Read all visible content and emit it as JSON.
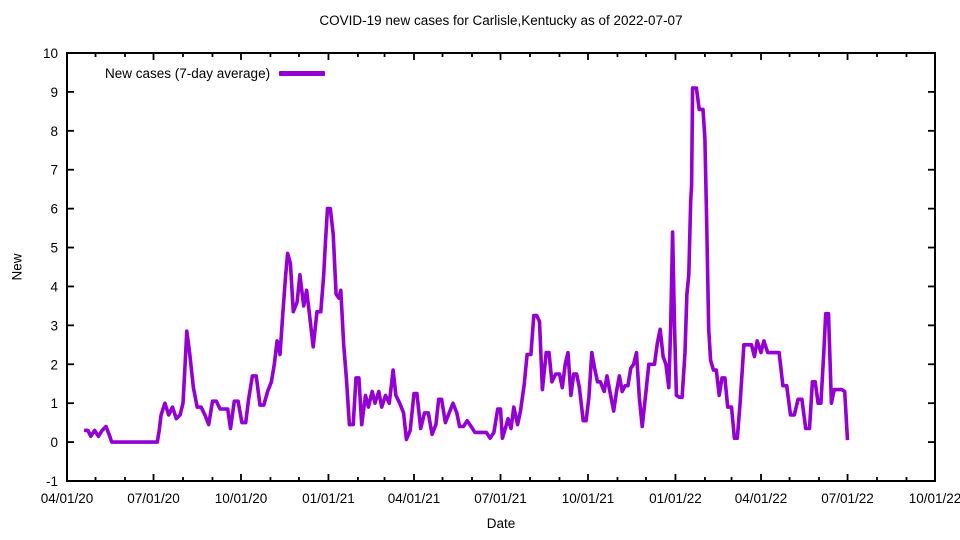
{
  "chart_data": {
    "type": "line",
    "title": "COVID-19 new cases for Carlisle,Kentucky as of 2022-07-07",
    "xlabel": "Date",
    "ylabel": "New",
    "grid": false,
    "legend_position": "top-left-inside",
    "legend": [
      {
        "label": "New cases (7-day average)",
        "color": "#9400D3"
      }
    ],
    "x_range": [
      "2020-04-01",
      "2022-10-01"
    ],
    "y_range": [
      -1,
      10
    ],
    "x_minor_tick_interval": "1 month",
    "x_major_ticks": [
      {
        "date": "2020-04-01",
        "label": "04/01/20"
      },
      {
        "date": "2020-07-01",
        "label": "07/01/20"
      },
      {
        "date": "2020-10-01",
        "label": "10/01/20"
      },
      {
        "date": "2021-01-01",
        "label": "01/01/21"
      },
      {
        "date": "2021-04-01",
        "label": "04/01/21"
      },
      {
        "date": "2021-07-01",
        "label": "07/01/21"
      },
      {
        "date": "2021-10-01",
        "label": "10/01/21"
      },
      {
        "date": "2022-01-01",
        "label": "01/01/22"
      },
      {
        "date": "2022-04-01",
        "label": "04/01/22"
      },
      {
        "date": "2022-07-01",
        "label": "07/01/22"
      },
      {
        "date": "2022-10-01",
        "label": "10/01/22"
      }
    ],
    "y_ticks": [
      -1,
      0,
      1,
      2,
      3,
      4,
      5,
      6,
      7,
      8,
      9,
      10
    ],
    "series": [
      {
        "name": "New cases (7-day average)",
        "color": "#9400D3",
        "points": [
          [
            "2020-04-19",
            0.3
          ],
          [
            "2020-04-23",
            0.3
          ],
          [
            "2020-04-26",
            0.15
          ],
          [
            "2020-04-30",
            0.3
          ],
          [
            "2020-05-04",
            0.15
          ],
          [
            "2020-05-08",
            0.3
          ],
          [
            "2020-05-12",
            0.4
          ],
          [
            "2020-05-16",
            0.15
          ],
          [
            "2020-05-18",
            0
          ],
          [
            "2020-05-25",
            0
          ],
          [
            "2020-06-01",
            0
          ],
          [
            "2020-06-08",
            0
          ],
          [
            "2020-06-15",
            0
          ],
          [
            "2020-06-22",
            0
          ],
          [
            "2020-06-29",
            0
          ],
          [
            "2020-07-05",
            0
          ],
          [
            "2020-07-07",
            0.3
          ],
          [
            "2020-07-09",
            0.7
          ],
          [
            "2020-07-13",
            1.0
          ],
          [
            "2020-07-17",
            0.7
          ],
          [
            "2020-07-21",
            0.9
          ],
          [
            "2020-07-25",
            0.6
          ],
          [
            "2020-07-29",
            0.7
          ],
          [
            "2020-08-01",
            1.0
          ],
          [
            "2020-08-03",
            1.9
          ],
          [
            "2020-08-05",
            2.85
          ],
          [
            "2020-08-08",
            2.3
          ],
          [
            "2020-08-12",
            1.4
          ],
          [
            "2020-08-16",
            0.9
          ],
          [
            "2020-08-20",
            0.9
          ],
          [
            "2020-08-24",
            0.7
          ],
          [
            "2020-08-28",
            0.45
          ],
          [
            "2020-09-01",
            1.05
          ],
          [
            "2020-09-05",
            1.05
          ],
          [
            "2020-09-09",
            0.85
          ],
          [
            "2020-09-13",
            0.85
          ],
          [
            "2020-09-17",
            0.85
          ],
          [
            "2020-09-20",
            0.35
          ],
          [
            "2020-09-24",
            1.05
          ],
          [
            "2020-09-28",
            1.05
          ],
          [
            "2020-10-02",
            0.5
          ],
          [
            "2020-10-06",
            0.5
          ],
          [
            "2020-10-09",
            1.1
          ],
          [
            "2020-10-13",
            1.7
          ],
          [
            "2020-10-17",
            1.7
          ],
          [
            "2020-10-21",
            0.95
          ],
          [
            "2020-10-25",
            0.95
          ],
          [
            "2020-10-29",
            1.3
          ],
          [
            "2020-11-02",
            1.55
          ],
          [
            "2020-11-05",
            2.0
          ],
          [
            "2020-11-08",
            2.6
          ],
          [
            "2020-11-11",
            2.25
          ],
          [
            "2020-11-14",
            3.3
          ],
          [
            "2020-11-17",
            4.3
          ],
          [
            "2020-11-19",
            4.85
          ],
          [
            "2020-11-22",
            4.6
          ],
          [
            "2020-11-25",
            3.35
          ],
          [
            "2020-11-29",
            3.6
          ],
          [
            "2020-12-02",
            4.3
          ],
          [
            "2020-12-06",
            3.5
          ],
          [
            "2020-12-09",
            3.9
          ],
          [
            "2020-12-12",
            3.3
          ],
          [
            "2020-12-16",
            2.45
          ],
          [
            "2020-12-20",
            3.35
          ],
          [
            "2020-12-24",
            3.35
          ],
          [
            "2020-12-27",
            4.3
          ],
          [
            "2020-12-29",
            5.2
          ],
          [
            "2020-12-31",
            6.0
          ],
          [
            "2021-01-03",
            6.0
          ],
          [
            "2021-01-06",
            5.35
          ],
          [
            "2021-01-09",
            3.8
          ],
          [
            "2021-01-12",
            3.7
          ],
          [
            "2021-01-14",
            3.9
          ],
          [
            "2021-01-17",
            2.5
          ],
          [
            "2021-01-20",
            1.6
          ],
          [
            "2021-01-23",
            0.45
          ],
          [
            "2021-01-27",
            0.45
          ],
          [
            "2021-01-30",
            1.65
          ],
          [
            "2021-02-02",
            1.65
          ],
          [
            "2021-02-05",
            0.45
          ],
          [
            "2021-02-09",
            1.2
          ],
          [
            "2021-02-12",
            0.9
          ],
          [
            "2021-02-16",
            1.3
          ],
          [
            "2021-02-19",
            1.0
          ],
          [
            "2021-02-23",
            1.3
          ],
          [
            "2021-02-26",
            0.9
          ],
          [
            "2021-03-02",
            1.2
          ],
          [
            "2021-03-06",
            1.0
          ],
          [
            "2021-03-10",
            1.85
          ],
          [
            "2021-03-13",
            1.2
          ],
          [
            "2021-03-17",
            1.0
          ],
          [
            "2021-03-21",
            0.75
          ],
          [
            "2021-03-24",
            0.07
          ],
          [
            "2021-03-28",
            0.3
          ],
          [
            "2021-04-01",
            1.25
          ],
          [
            "2021-04-04",
            1.25
          ],
          [
            "2021-04-08",
            0.35
          ],
          [
            "2021-04-12",
            0.75
          ],
          [
            "2021-04-16",
            0.75
          ],
          [
            "2021-04-20",
            0.2
          ],
          [
            "2021-04-24",
            0.45
          ],
          [
            "2021-04-27",
            1.1
          ],
          [
            "2021-04-30",
            1.1
          ],
          [
            "2021-05-04",
            0.5
          ],
          [
            "2021-05-08",
            0.75
          ],
          [
            "2021-05-12",
            1.0
          ],
          [
            "2021-05-16",
            0.75
          ],
          [
            "2021-05-19",
            0.4
          ],
          [
            "2021-05-23",
            0.4
          ],
          [
            "2021-05-27",
            0.55
          ],
          [
            "2021-05-31",
            0.4
          ],
          [
            "2021-06-04",
            0.25
          ],
          [
            "2021-06-10",
            0.25
          ],
          [
            "2021-06-16",
            0.25
          ],
          [
            "2021-06-20",
            0.1
          ],
          [
            "2021-06-24",
            0.25
          ],
          [
            "2021-06-28",
            0.85
          ],
          [
            "2021-07-01",
            0.85
          ],
          [
            "2021-07-03",
            0.1
          ],
          [
            "2021-07-06",
            0.35
          ],
          [
            "2021-07-09",
            0.6
          ],
          [
            "2021-07-12",
            0.35
          ],
          [
            "2021-07-15",
            0.9
          ],
          [
            "2021-07-19",
            0.45
          ],
          [
            "2021-07-22",
            0.8
          ],
          [
            "2021-07-26",
            1.5
          ],
          [
            "2021-07-29",
            2.25
          ],
          [
            "2021-08-02",
            2.25
          ],
          [
            "2021-08-05",
            3.25
          ],
          [
            "2021-08-08",
            3.25
          ],
          [
            "2021-08-11",
            3.1
          ],
          [
            "2021-08-14",
            1.35
          ],
          [
            "2021-08-18",
            2.3
          ],
          [
            "2021-08-21",
            2.3
          ],
          [
            "2021-08-24",
            1.55
          ],
          [
            "2021-08-28",
            1.75
          ],
          [
            "2021-09-01",
            1.75
          ],
          [
            "2021-09-04",
            1.4
          ],
          [
            "2021-09-07",
            2.0
          ],
          [
            "2021-09-10",
            2.3
          ],
          [
            "2021-09-13",
            1.2
          ],
          [
            "2021-09-16",
            1.75
          ],
          [
            "2021-09-19",
            1.75
          ],
          [
            "2021-09-22",
            1.4
          ],
          [
            "2021-09-26",
            0.55
          ],
          [
            "2021-09-29",
            0.55
          ],
          [
            "2021-10-02",
            1.15
          ],
          [
            "2021-10-05",
            2.3
          ],
          [
            "2021-10-08",
            1.9
          ],
          [
            "2021-10-11",
            1.55
          ],
          [
            "2021-10-14",
            1.55
          ],
          [
            "2021-10-18",
            1.3
          ],
          [
            "2021-10-21",
            1.7
          ],
          [
            "2021-10-24",
            1.3
          ],
          [
            "2021-10-28",
            0.8
          ],
          [
            "2021-10-31",
            1.3
          ],
          [
            "2021-11-03",
            1.7
          ],
          [
            "2021-11-06",
            1.3
          ],
          [
            "2021-11-09",
            1.45
          ],
          [
            "2021-11-12",
            1.45
          ],
          [
            "2021-11-15",
            1.9
          ],
          [
            "2021-11-18",
            2.0
          ],
          [
            "2021-11-21",
            2.3
          ],
          [
            "2021-11-24",
            1.15
          ],
          [
            "2021-11-27",
            0.4
          ],
          [
            "2021-12-01",
            1.3
          ],
          [
            "2021-12-04",
            2.0
          ],
          [
            "2021-12-07",
            2.0
          ],
          [
            "2021-12-10",
            2.0
          ],
          [
            "2021-12-13",
            2.55
          ],
          [
            "2021-12-16",
            2.9
          ],
          [
            "2021-12-19",
            2.2
          ],
          [
            "2021-12-22",
            2.0
          ],
          [
            "2021-12-25",
            1.4
          ],
          [
            "2021-12-27",
            3.0
          ],
          [
            "2021-12-29",
            5.4
          ],
          [
            "2021-12-31",
            3.0
          ],
          [
            "2022-01-02",
            1.2
          ],
          [
            "2022-01-05",
            1.15
          ],
          [
            "2022-01-08",
            1.15
          ],
          [
            "2022-01-11",
            2.3
          ],
          [
            "2022-01-13",
            3.8
          ],
          [
            "2022-01-15",
            4.3
          ],
          [
            "2022-01-17",
            6.2
          ],
          [
            "2022-01-18",
            6.6
          ],
          [
            "2022-01-19",
            9.1
          ],
          [
            "2022-01-23",
            9.1
          ],
          [
            "2022-01-26",
            8.55
          ],
          [
            "2022-01-30",
            8.55
          ],
          [
            "2022-02-01",
            7.8
          ],
          [
            "2022-02-03",
            5.5
          ],
          [
            "2022-02-05",
            2.9
          ],
          [
            "2022-02-07",
            2.1
          ],
          [
            "2022-02-10",
            1.85
          ],
          [
            "2022-02-13",
            1.85
          ],
          [
            "2022-02-16",
            1.2
          ],
          [
            "2022-02-19",
            1.65
          ],
          [
            "2022-02-22",
            1.65
          ],
          [
            "2022-02-25",
            0.9
          ],
          [
            "2022-03-01",
            0.9
          ],
          [
            "2022-03-04",
            0.1
          ],
          [
            "2022-03-07",
            0.1
          ],
          [
            "2022-03-10",
            1.0
          ],
          [
            "2022-03-14",
            2.5
          ],
          [
            "2022-03-18",
            2.5
          ],
          [
            "2022-03-22",
            2.5
          ],
          [
            "2022-03-25",
            2.2
          ],
          [
            "2022-03-28",
            2.6
          ],
          [
            "2022-04-01",
            2.3
          ],
          [
            "2022-04-04",
            2.6
          ],
          [
            "2022-04-08",
            2.3
          ],
          [
            "2022-04-12",
            2.3
          ],
          [
            "2022-04-16",
            2.3
          ],
          [
            "2022-04-20",
            2.3
          ],
          [
            "2022-04-24",
            1.45
          ],
          [
            "2022-04-28",
            1.45
          ],
          [
            "2022-05-02",
            0.7
          ],
          [
            "2022-05-06",
            0.7
          ],
          [
            "2022-05-10",
            1.1
          ],
          [
            "2022-05-14",
            1.1
          ],
          [
            "2022-05-18",
            0.35
          ],
          [
            "2022-05-22",
            0.35
          ],
          [
            "2022-05-25",
            1.55
          ],
          [
            "2022-05-28",
            1.55
          ],
          [
            "2022-05-31",
            1.0
          ],
          [
            "2022-06-03",
            1.0
          ],
          [
            "2022-06-06",
            2.3
          ],
          [
            "2022-06-08",
            3.3
          ],
          [
            "2022-06-11",
            3.3
          ],
          [
            "2022-06-14",
            1.0
          ],
          [
            "2022-06-17",
            1.35
          ],
          [
            "2022-06-21",
            1.35
          ],
          [
            "2022-06-25",
            1.35
          ],
          [
            "2022-06-28",
            1.3
          ],
          [
            "2022-07-01",
            0.05
          ]
        ]
      }
    ],
    "colors": {
      "line": "#9400D3",
      "axis": "#000000",
      "background": "#ffffff"
    }
  }
}
